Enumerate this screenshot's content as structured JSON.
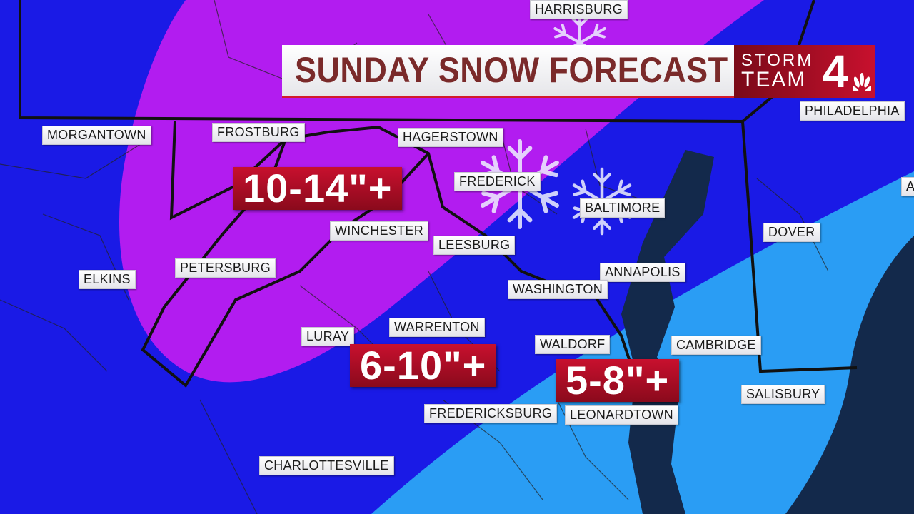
{
  "title": "SUNDAY SNOW FORECAST",
  "logo": {
    "line1": "STORM",
    "line2": "TEAM",
    "number": "4",
    "network_icon": "peacock-icon"
  },
  "colors": {
    "base_blue": "#1a1ae6",
    "heavy_purple": "#b21cf0",
    "light_blue": "#2a9df4",
    "water": "#13294b",
    "amount_red": "#b00d24"
  },
  "amounts": [
    {
      "label": "10-14\"+"
    },
    {
      "label": "6-10\"+"
    },
    {
      "label": "5-8\"+"
    }
  ],
  "cities": [
    "HARRISBURG",
    "MORGANTOWN",
    "FROSTBURG",
    "HAGERSTOWN",
    "FREDERICK",
    "BALTIMORE",
    "WINCHESTER",
    "LEESBURG",
    "DOVER",
    "PETERSBURG",
    "ELKINS",
    "ANNAPOLIS",
    "WASHINGTON",
    "LURAY",
    "WARRENTON",
    "WALDORF",
    "CAMBRIDGE",
    "SALISBURY",
    "FREDERICKSBURG",
    "LEONARDTOWN",
    "CHARLOTTESVILLE",
    "PHILADELPHIA",
    "A"
  ]
}
